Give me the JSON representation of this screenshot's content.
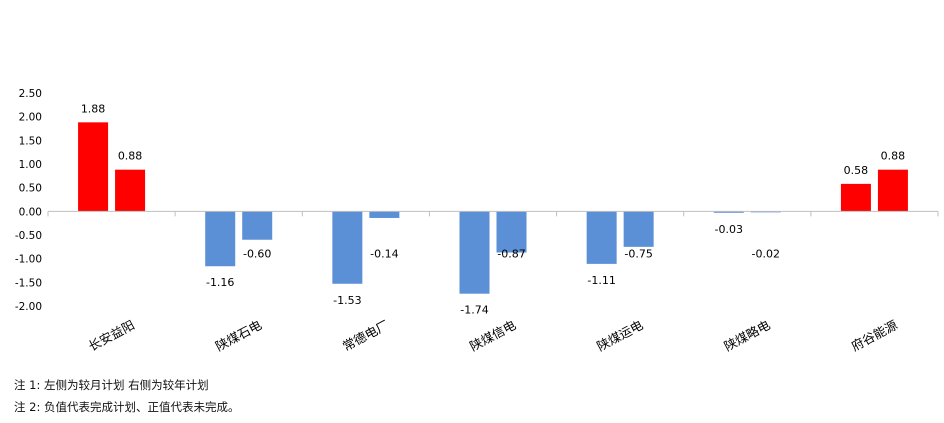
{
  "chart_data": {
    "type": "bar",
    "categories": [
      "长安益阳",
      "陕煤石电",
      "常德电厂",
      "陕煤信电",
      "陕煤运电",
      "陕煤略电",
      "府谷能源"
    ],
    "series": [
      {
        "values": [
          1.88,
          -1.16,
          -1.53,
          -1.74,
          -1.11,
          -0.03,
          0.58
        ]
      },
      {
        "values": [
          0.88,
          -0.6,
          -0.14,
          -0.87,
          -0.75,
          -0.02,
          0.88
        ]
      }
    ],
    "value_labels": [
      [
        "1.88",
        "-1.16",
        "-1.53",
        "-1.74",
        "-1.11",
        "-0.03",
        "0.58"
      ],
      [
        "0.88",
        "-0.60",
        "-0.14",
        "-0.87",
        "-0.75",
        "-0.02",
        "0.88"
      ]
    ],
    "yticks": [
      "2.50",
      "2.00",
      "1.50",
      "1.00",
      "0.50",
      "0.00",
      "-0.50",
      "-1.00",
      "-1.50",
      "-2.00"
    ],
    "ylim": [
      -2.0,
      2.5
    ],
    "colors": {
      "positive": "#ff0000",
      "negative": "#5b8fd6",
      "axis": "#bfbfbf",
      "text": "#000000"
    },
    "title": "",
    "xlabel": "",
    "ylabel": "",
    "grid": false
  },
  "notes": {
    "note1": "注 1: 左侧为较月计划  右侧为较年计划",
    "note2": "注 2: 负值代表完成计划、正值代表未完成。"
  }
}
